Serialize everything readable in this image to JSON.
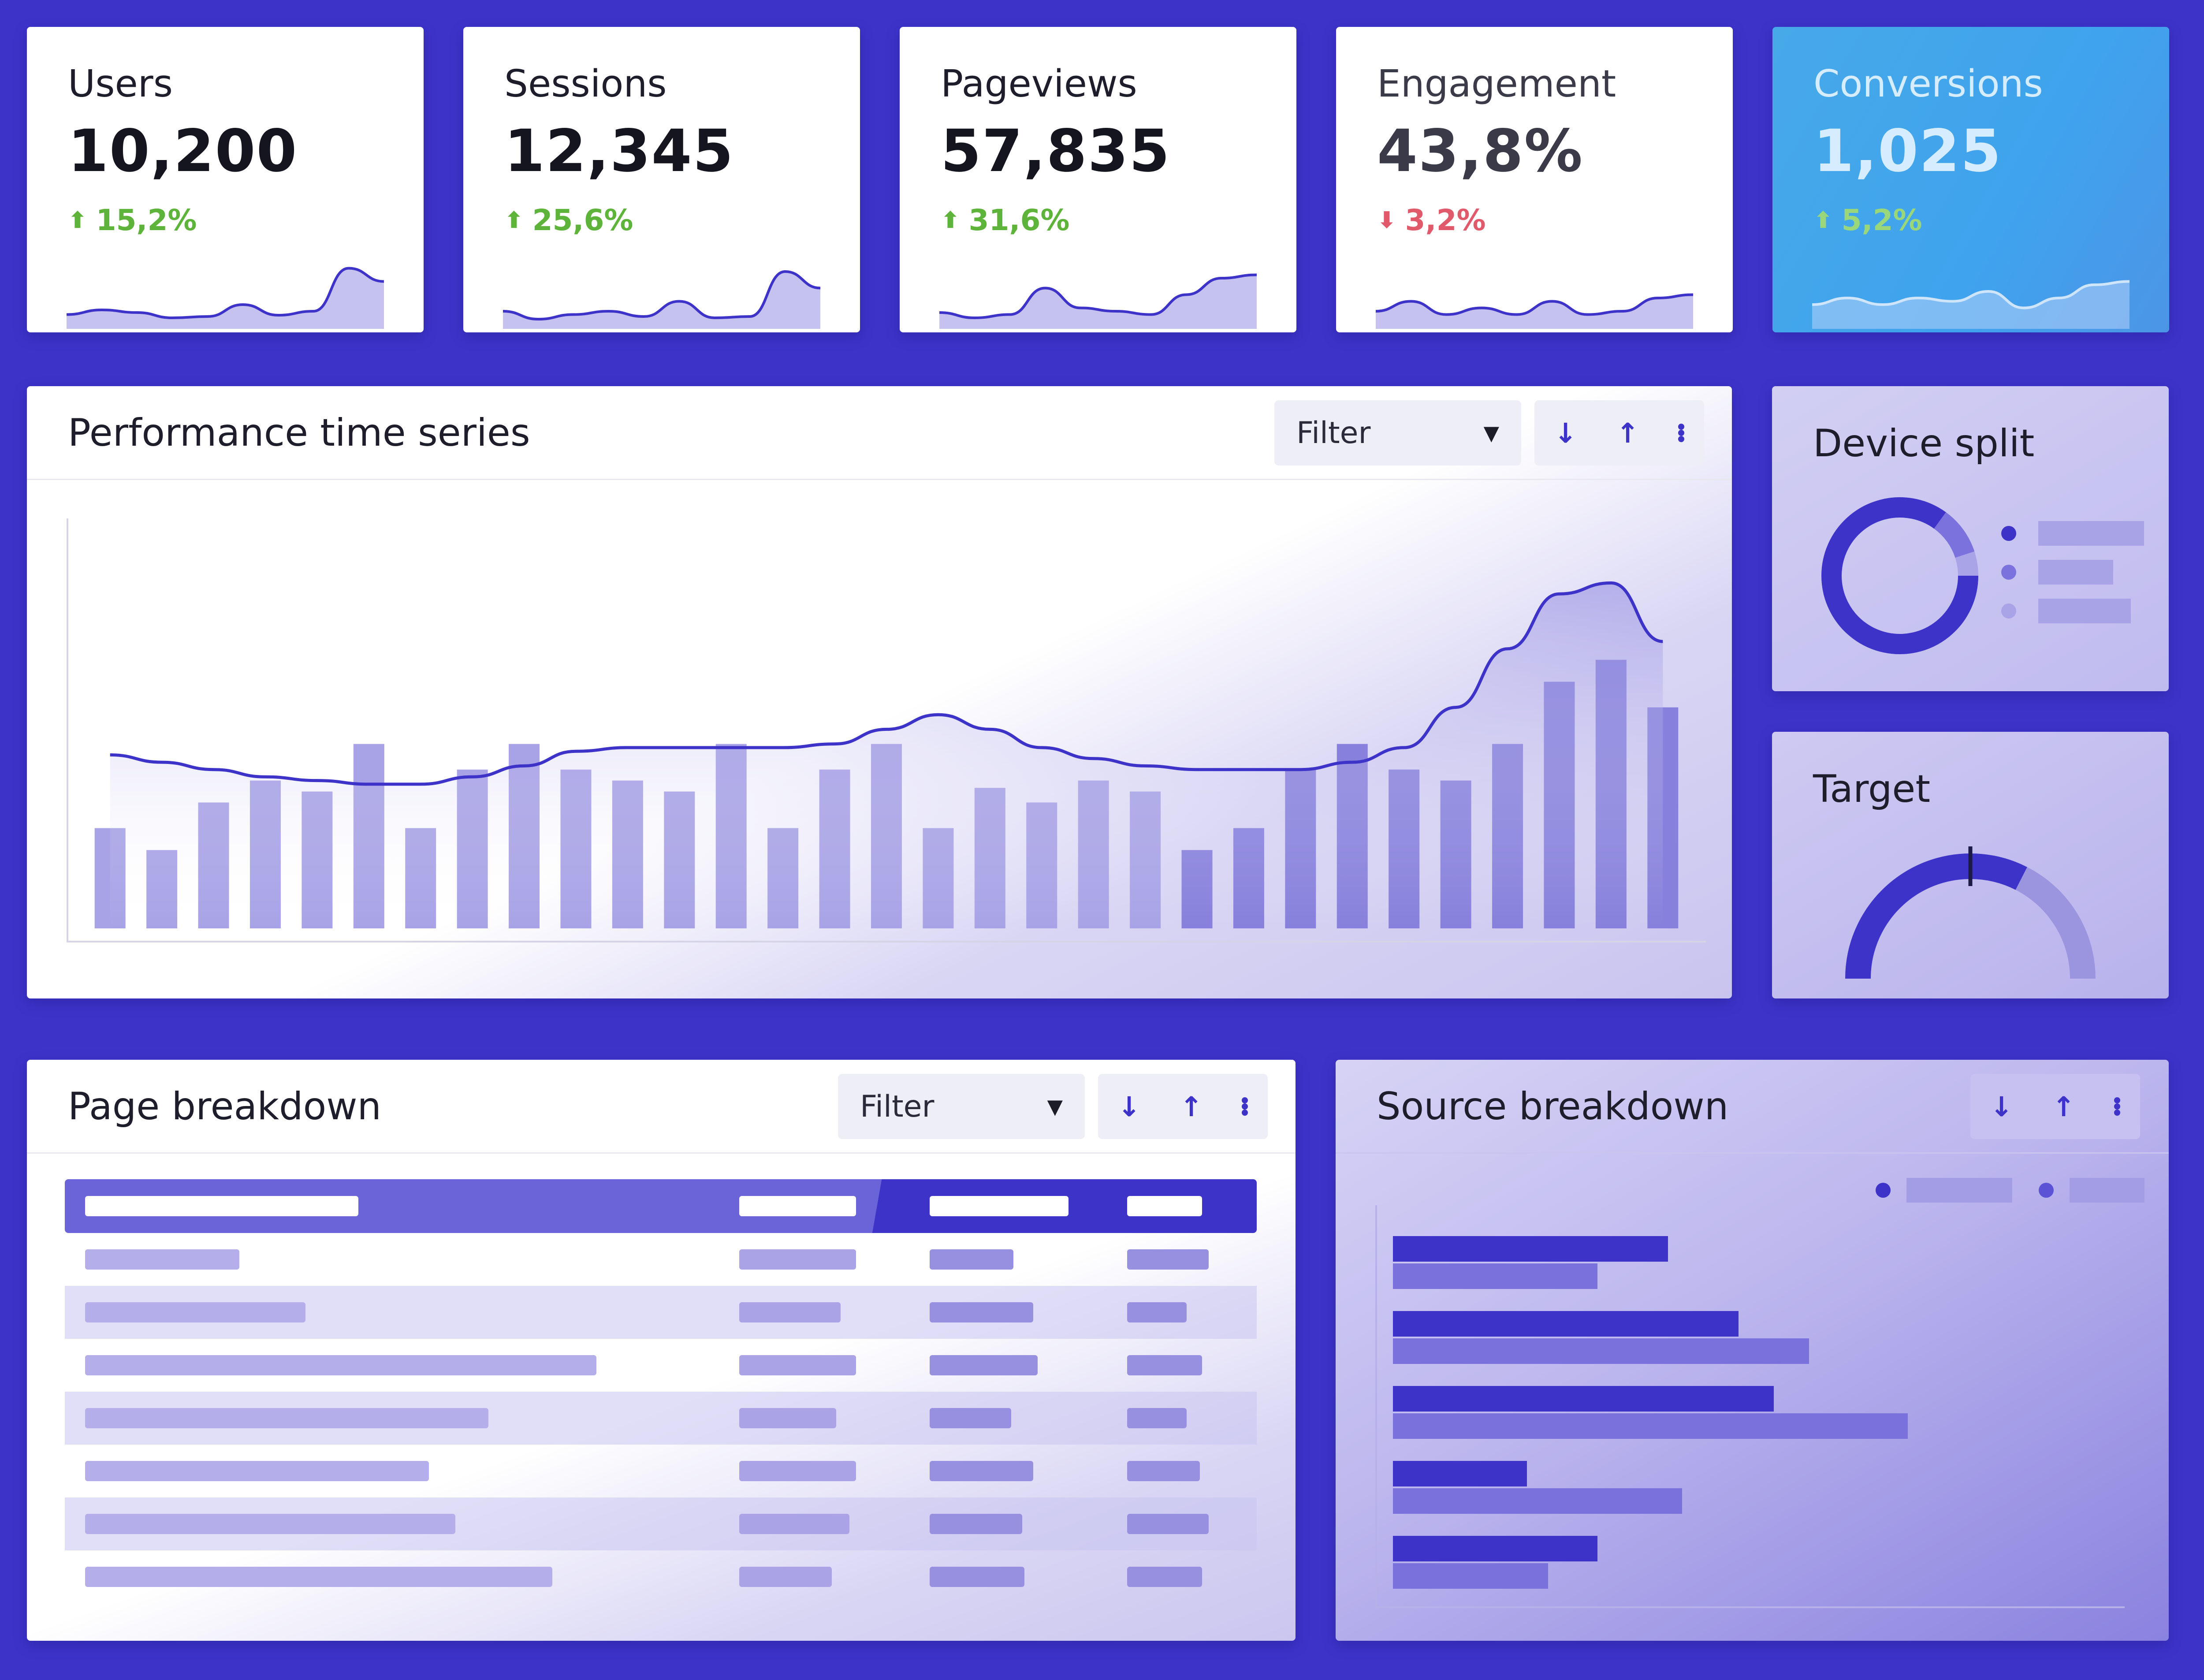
{
  "kpis": [
    {
      "label": "Users",
      "value": "10,200",
      "delta": "15,2%",
      "direction": "up",
      "spark": [
        0.15,
        0.22,
        0.18,
        0.1,
        0.12,
        0.3,
        0.14,
        0.2,
        0.85,
        0.65
      ]
    },
    {
      "label": "Sessions",
      "value": "12,345",
      "delta": "25,6%",
      "direction": "up",
      "spark": [
        0.2,
        0.08,
        0.15,
        0.2,
        0.12,
        0.35,
        0.1,
        0.12,
        0.8,
        0.55
      ]
    },
    {
      "label": "Pageviews",
      "value": "57,835",
      "delta": "31,6%",
      "direction": "up",
      "spark": [
        0.18,
        0.1,
        0.15,
        0.55,
        0.25,
        0.2,
        0.15,
        0.45,
        0.7,
        0.75
      ]
    },
    {
      "label": "Engagement",
      "value": "43,8%",
      "direction": "down",
      "delta": "3,2%",
      "spark": [
        0.2,
        0.35,
        0.15,
        0.25,
        0.15,
        0.35,
        0.15,
        0.2,
        0.4,
        0.45
      ]
    },
    {
      "label": "Conversions",
      "value": "1,025",
      "delta": "5,2%",
      "direction": "up",
      "spark": [
        0.3,
        0.4,
        0.3,
        0.4,
        0.35,
        0.5,
        0.25,
        0.4,
        0.6,
        0.65
      ]
    }
  ],
  "performance": {
    "title": "Performance time series",
    "filter_label": "Filter"
  },
  "device_split": {
    "title": "Device split"
  },
  "target": {
    "title": "Target"
  },
  "page_breakdown": {
    "title": "Page breakdown",
    "filter_label": "Filter"
  },
  "source_breakdown": {
    "title": "Source breakdown"
  },
  "colors": {
    "background": "#3d33c9",
    "accent": "#3d33c9",
    "up": "#5eb33b",
    "down": "#e05a6c",
    "conversions_card": "#47a9e8"
  },
  "icons": [
    "arrow-down-icon",
    "arrow-up-icon",
    "more-vertical-icon",
    "caret-down-icon",
    "trend-up-icon",
    "trend-down-icon"
  ],
  "chart_data": [
    {
      "type": "bar",
      "title": "Performance time series",
      "xlabel": "",
      "ylabel": "",
      "ylim": [
        0,
        1
      ],
      "values": [
        0.25,
        0.19,
        0.32,
        0.38,
        0.35,
        0.48,
        0.25,
        0.41,
        0.48,
        0.41,
        0.38,
        0.35,
        0.48,
        0.25,
        0.41,
        0.48,
        0.25,
        0.36,
        0.32,
        0.38,
        0.35,
        0.19,
        0.25,
        0.41,
        0.48,
        0.41,
        0.38,
        0.48,
        0.65,
        0.71,
        0.58
      ],
      "line": [
        0.45,
        0.43,
        0.41,
        0.39,
        0.38,
        0.37,
        0.37,
        0.39,
        0.42,
        0.46,
        0.47,
        0.47,
        0.47,
        0.47,
        0.48,
        0.52,
        0.56,
        0.52,
        0.47,
        0.44,
        0.42,
        0.41,
        0.41,
        0.41,
        0.43,
        0.47,
        0.58,
        0.74,
        0.89,
        0.92,
        0.76
      ]
    },
    {
      "type": "pie",
      "title": "Device split",
      "values": [
        85,
        10,
        5
      ]
    },
    {
      "type": "bar",
      "title": "Target",
      "values": [
        0.65
      ],
      "ylim": [
        0,
        1
      ]
    },
    {
      "type": "bar",
      "title": "Source breakdown",
      "categories": [
        "1",
        "2",
        "3",
        "4",
        "5"
      ],
      "series": [
        {
          "values": [
            0.39,
            0.49,
            0.54,
            0.19,
            0.29
          ]
        },
        {
          "values": [
            0.29,
            0.59,
            0.73,
            0.41,
            0.22
          ]
        }
      ]
    }
  ]
}
